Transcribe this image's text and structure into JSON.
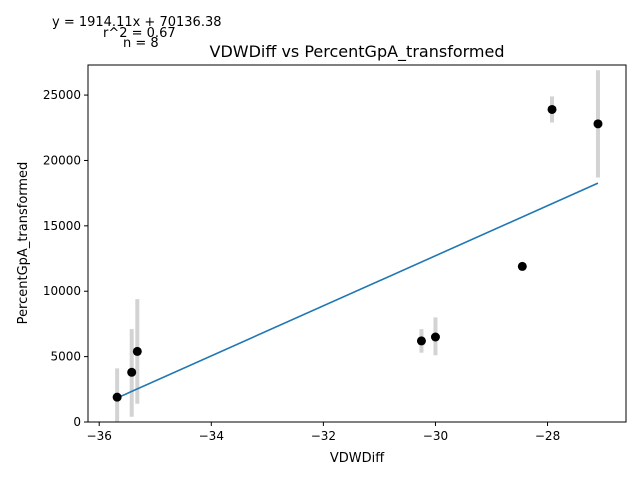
{
  "chart_data": {
    "type": "scatter",
    "title": "VDWDiff vs PercentGpA_transformed",
    "xlabel": "VDWDiff",
    "ylabel": "PercentGpA_transformed",
    "xlim": [
      -36.2,
      -26.6
    ],
    "ylim": [
      0,
      27300
    ],
    "xticks": [
      -36,
      -34,
      -32,
      -30,
      -28
    ],
    "xtick_labels": [
      "−36",
      "−34",
      "−32",
      "−30",
      "−28"
    ],
    "yticks": [
      0,
      5000,
      10000,
      15000,
      20000,
      25000
    ],
    "ytick_labels": [
      "0",
      "5000",
      "10000",
      "15000",
      "20000",
      "25000"
    ],
    "grid": false,
    "annotations": {
      "equation": "y = 1914.11x + 70136.38",
      "r2": "r^2 = 0.67",
      "n": "n = 8"
    },
    "points": [
      {
        "x": -35.68,
        "y": 1900,
        "err_low": 0,
        "err_high": 4100
      },
      {
        "x": -35.42,
        "y": 3800,
        "err_low": 400,
        "err_high": 7100
      },
      {
        "x": -35.32,
        "y": 5400,
        "err_low": 1400,
        "err_high": 9400
      },
      {
        "x": -30.25,
        "y": 6200,
        "err_low": 5300,
        "err_high": 7100
      },
      {
        "x": -30.0,
        "y": 6500,
        "err_low": 5100,
        "err_high": 8000
      },
      {
        "x": -28.45,
        "y": 11900,
        "err_low": 11900,
        "err_high": 11900
      },
      {
        "x": -27.92,
        "y": 23900,
        "err_low": 22900,
        "err_high": 24900
      },
      {
        "x": -27.1,
        "y": 22800,
        "err_low": 18700,
        "err_high": 26900
      }
    ],
    "fit_line": {
      "x": [
        -35.68,
        -27.1
      ],
      "slope": 1914.11,
      "intercept": 70136.38
    },
    "colors": {
      "points": "#000000",
      "errorbars": "#d3d3d3",
      "fit": "#1f77b4"
    }
  }
}
